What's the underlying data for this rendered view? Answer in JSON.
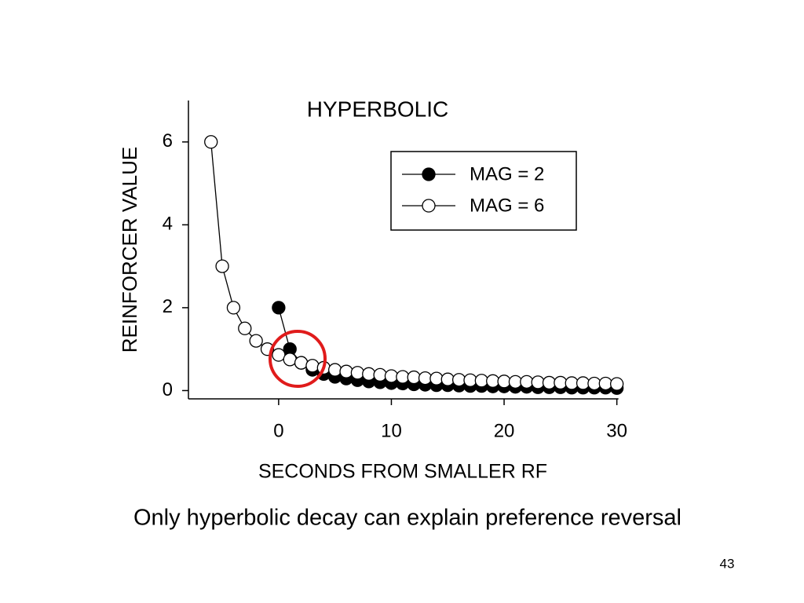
{
  "chart_data": {
    "type": "line",
    "title": "HYPERBOLIC",
    "xlabel": "SECONDS FROM SMALLER RF",
    "ylabel": "REINFORCER VALUE",
    "x": [
      -6,
      -5,
      -4,
      -3,
      -2,
      -1,
      0,
      1,
      2,
      3,
      4,
      5,
      6,
      7,
      8,
      9,
      10,
      11,
      12,
      13,
      14,
      15,
      16,
      17,
      18,
      19,
      20,
      21,
      22,
      23,
      24,
      25,
      26,
      27,
      28,
      29,
      30
    ],
    "series": [
      {
        "name": "MAG = 2",
        "color": "#000000",
        "values": [
          null,
          null,
          null,
          null,
          null,
          null,
          2,
          1,
          0.67,
          0.5,
          0.4,
          0.33,
          0.29,
          0.25,
          0.22,
          0.2,
          0.18,
          0.17,
          0.15,
          0.14,
          0.13,
          0.13,
          0.12,
          0.11,
          0.11,
          0.1,
          0.1,
          0.09,
          0.09,
          0.08,
          0.08,
          0.08,
          0.07,
          0.07,
          0.07,
          0.07,
          0.06
        ]
      },
      {
        "name": "MAG = 6",
        "color": "#ffffff",
        "values": [
          6,
          3,
          2,
          1.5,
          1.2,
          1,
          0.86,
          0.75,
          0.67,
          0.6,
          0.55,
          0.5,
          0.46,
          0.43,
          0.4,
          0.38,
          0.35,
          0.33,
          0.32,
          0.3,
          0.29,
          0.27,
          0.26,
          0.25,
          0.24,
          0.23,
          0.22,
          0.21,
          0.21,
          0.2,
          0.19,
          0.19,
          0.18,
          0.18,
          0.17,
          0.17,
          0.16
        ]
      }
    ],
    "xlim": [
      -8,
      31
    ],
    "ylim": [
      -0.2,
      7
    ],
    "xticks": [
      0,
      10,
      20,
      30
    ],
    "yticks": [
      0,
      2,
      4,
      6
    ],
    "grid": false,
    "legend": "upper right"
  },
  "caption": "Only hyperbolic decay can explain preference reversal",
  "page_number": "43"
}
